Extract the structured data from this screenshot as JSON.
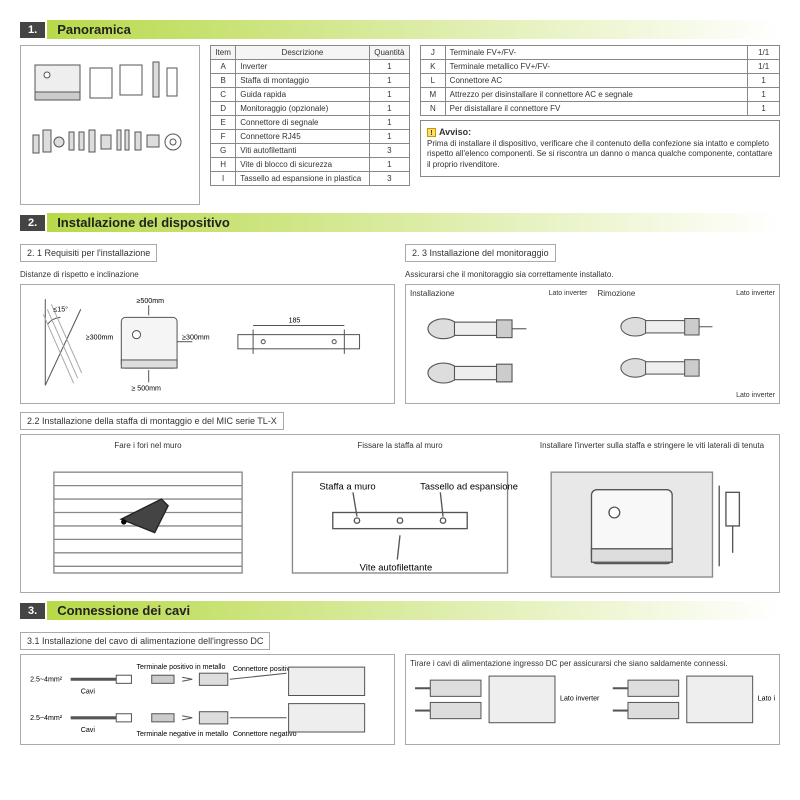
{
  "section1": {
    "num": "1.",
    "title": "Panoramica",
    "table1": {
      "headers": [
        "Item",
        "Descrizione",
        "Quantità"
      ],
      "rows": [
        [
          "A",
          "Inverter",
          "1"
        ],
        [
          "B",
          "Staffa di montaggio",
          "1"
        ],
        [
          "C",
          "Guida rapida",
          "1"
        ],
        [
          "D",
          "Monitoraggio (opzionale)",
          "1"
        ],
        [
          "E",
          "Connettore di segnale",
          "1"
        ],
        [
          "F",
          "Connettore RJ45",
          "1"
        ],
        [
          "G",
          "Viti autofilettanti",
          "3"
        ],
        [
          "H",
          "Vite di blocco di sicurezza",
          "1"
        ],
        [
          "I",
          "Tassello ad espansione in plastica",
          "3"
        ]
      ]
    },
    "table2": {
      "rows": [
        [
          "J",
          "Terminale FV+/FV-",
          "1/1"
        ],
        [
          "K",
          "Terminale metallico FV+/FV-",
          "1/1"
        ],
        [
          "L",
          "Connettore AC",
          "1"
        ],
        [
          "M",
          "Attrezzo per disinstallare il connettore AC e segnale",
          "1"
        ],
        [
          "N",
          "Per disistallare il connettore FV",
          "1"
        ]
      ]
    },
    "notice_title": "Avviso:",
    "notice_body": "Prima di installare il dispositivo, verificare che il contenuto della confezione sia intatto e completo rispetto all'elenco componenti. Se si riscontra un danno o manca qualche componente, contattare il proprio rivenditore."
  },
  "section2": {
    "num": "2.",
    "title": "Installazione del dispositivo",
    "sub21": "2. 1 Requisiti per l'installazione",
    "sub21_text": "Distanze di rispetto e inclinazione",
    "sub23": "2. 3 Installazione del monitoraggio",
    "sub23_text": "Assicurarsi che il monitoraggio sia correttamente installato.",
    "sub22": "2.2 Installazione della staffa di montaggio e del MIC serie TL-X",
    "lbl_install": "Installazione",
    "lbl_remove": "Rimozione",
    "lbl_side": "Lato inverter",
    "step_a": "Fare i fori nel muro",
    "step_b": "Fissare la staffa al muro",
    "step_c": "Installare l'inverter sulla staffa e stringere le viti laterali di tenuta",
    "dim_top": "≥500mm",
    "dim_side": "≥300mm",
    "dim_bot": "≥ 500mm",
    "dim_angle": "≤15°",
    "dim_bracket": "185",
    "lbl_staffa": "Staffa a muro",
    "lbl_tassello": "Tassello ad espansione",
    "lbl_vite": "Vite autofilettante"
  },
  "section3": {
    "num": "3.",
    "title": "Connessione dei cavi",
    "sub31": "3.1 Installazione del cavo di alimentazione dell'ingresso DC",
    "cable_size": "2.5~4mm²",
    "lbl_cavi": "Cavi",
    "lbl_term_pos": "Terminale positivo in metallo",
    "lbl_term_neg": "Terminale negative in metallo",
    "lbl_conn_pos": "Connettore positivo",
    "lbl_conn_neg": "Connettore negativo",
    "text_right": "Tirare i cavi di alimentazione ingresso DC per assicurarsi che siano saldamente connessi.",
    "lbl_side": "Lato inverter"
  },
  "colors": {
    "green_grad": "#b8d94a",
    "dark_num": "#444444",
    "border": "#888888"
  }
}
